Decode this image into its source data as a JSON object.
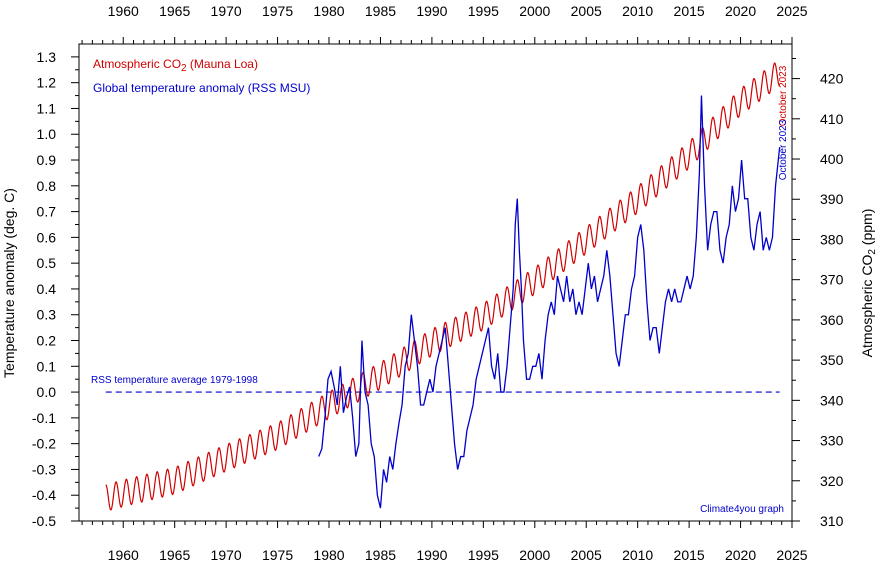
{
  "chart_data": {
    "type": "line",
    "colors": {
      "co2": "#d00000",
      "temperature": "#0000cc",
      "reference": "#0000cc",
      "axes": "#000000"
    },
    "x_axis": {
      "range": [
        1955.7,
        2025
      ],
      "ticks": [
        1960,
        1965,
        1970,
        1975,
        1980,
        1985,
        1990,
        1995,
        2000,
        2005,
        2010,
        2015,
        2020,
        2025
      ],
      "tick_labels": [
        "1960",
        "1965",
        "1970",
        "1975",
        "1980",
        "1985",
        "1990",
        "1995",
        "2000",
        "2005",
        "2010",
        "2015",
        "2020",
        "2025"
      ],
      "minor_step": 1,
      "labels_top_and_bottom": true
    },
    "y_left": {
      "label": "Temperature anomaly (deg. C)",
      "range": [
        -0.5,
        1.35
      ],
      "ticks": [
        -0.5,
        -0.4,
        -0.3,
        -0.2,
        -0.1,
        0.0,
        0.1,
        0.2,
        0.3,
        0.4,
        0.5,
        0.6,
        0.7,
        0.8,
        0.9,
        1.0,
        1.1,
        1.2,
        1.3
      ],
      "tick_labels": [
        "-0.5",
        "-0.4",
        "-0.3",
        "-0.2",
        "-0.1",
        "0.0",
        "0.1",
        "0.2",
        "0.3",
        "0.4",
        "0.5",
        "0.6",
        "0.7",
        "0.8",
        "0.9",
        "1.0",
        "1.1",
        "1.2",
        "1.3"
      ]
    },
    "y_right": {
      "label_prefix": "Atmospheric CO",
      "label_sub": "2",
      "label_suffix": " (ppm)",
      "range": [
        310,
        428.6
      ],
      "ticks": [
        310,
        320,
        330,
        340,
        350,
        360,
        370,
        380,
        390,
        400,
        410,
        420
      ],
      "tick_labels": [
        "310",
        "320",
        "330",
        "340",
        "350",
        "360",
        "370",
        "380",
        "390",
        "400",
        "410",
        "420"
      ]
    },
    "series": [
      {
        "name": "Atmospheric CO2 (Mauna Loa)",
        "legend_prefix": "Atmospheric CO",
        "legend_sub": "2",
        "legend_suffix": " (Mauna Loa)",
        "axis": "right",
        "style": "seasonal-cycle",
        "x": [
          1958.3,
          1960,
          1965,
          1970,
          1975,
          1980,
          1985,
          1990,
          1995,
          2000,
          2005,
          2010,
          2015,
          2020,
          2023.8
        ],
        "y": [
          315.7,
          316.9,
          320.0,
          325.7,
          331.1,
          338.8,
          346.1,
          354.4,
          360.8,
          369.7,
          379.8,
          389.9,
          401.0,
          414.2,
          421.5
        ],
        "seasonal_amplitude_ppm": 3.3
      },
      {
        "name": "Global temperature anomaly (RSS MSU)",
        "axis": "left",
        "x": [
          1979.0,
          1979.3,
          1979.6,
          1979.9,
          1980.2,
          1980.5,
          1980.8,
          1981.1,
          1981.4,
          1981.7,
          1982.0,
          1982.3,
          1982.6,
          1982.9,
          1983.2,
          1983.5,
          1983.8,
          1984.1,
          1984.4,
          1984.7,
          1985.0,
          1985.3,
          1985.6,
          1985.9,
          1986.2,
          1986.5,
          1986.8,
          1987.1,
          1987.4,
          1987.7,
          1988.0,
          1988.3,
          1988.6,
          1988.9,
          1989.2,
          1989.5,
          1989.8,
          1990.1,
          1990.4,
          1990.7,
          1991.0,
          1991.3,
          1991.6,
          1991.9,
          1992.2,
          1992.5,
          1992.8,
          1993.1,
          1993.4,
          1993.7,
          1994.0,
          1994.3,
          1994.6,
          1994.9,
          1995.2,
          1995.5,
          1995.8,
          1996.1,
          1996.4,
          1996.7,
          1997.0,
          1997.3,
          1997.6,
          1997.9,
          1998.1,
          1998.3,
          1998.5,
          1998.7,
          1998.9,
          1999.2,
          1999.5,
          1999.8,
          2000.1,
          2000.4,
          2000.7,
          2001.0,
          2001.3,
          2001.6,
          2001.9,
          2002.2,
          2002.5,
          2002.8,
          2003.1,
          2003.4,
          2003.7,
          2004.0,
          2004.3,
          2004.6,
          2004.9,
          2005.2,
          2005.5,
          2005.8,
          2006.1,
          2006.4,
          2006.7,
          2007.0,
          2007.3,
          2007.6,
          2007.9,
          2008.2,
          2008.5,
          2008.8,
          2009.1,
          2009.4,
          2009.7,
          2010.0,
          2010.3,
          2010.6,
          2010.9,
          2011.2,
          2011.5,
          2011.8,
          2012.1,
          2012.4,
          2012.7,
          2013.0,
          2013.3,
          2013.6,
          2013.9,
          2014.2,
          2014.5,
          2014.8,
          2015.1,
          2015.4,
          2015.7,
          2016.0,
          2016.2,
          2016.5,
          2016.8,
          2017.1,
          2017.4,
          2017.7,
          2018.0,
          2018.3,
          2018.6,
          2018.9,
          2019.2,
          2019.5,
          2019.8,
          2020.1,
          2020.4,
          2020.7,
          2021.0,
          2021.3,
          2021.6,
          2021.9,
          2022.2,
          2022.5,
          2022.8,
          2023.1,
          2023.4,
          2023.8
        ],
        "y": [
          -0.25,
          -0.22,
          -0.1,
          0.05,
          0.08,
          0.02,
          -0.05,
          0.1,
          -0.08,
          -0.02,
          0.02,
          -0.1,
          -0.25,
          -0.2,
          0.2,
          0.0,
          -0.05,
          -0.2,
          -0.25,
          -0.4,
          -0.45,
          -0.3,
          -0.35,
          -0.25,
          -0.3,
          -0.2,
          -0.12,
          -0.05,
          0.1,
          0.15,
          0.3,
          0.2,
          0.1,
          -0.05,
          -0.05,
          0.0,
          0.05,
          0.0,
          0.1,
          0.15,
          0.2,
          0.25,
          0.1,
          -0.05,
          -0.2,
          -0.3,
          -0.25,
          -0.25,
          -0.15,
          -0.1,
          -0.05,
          0.05,
          0.1,
          0.15,
          0.2,
          0.25,
          0.1,
          0.05,
          0.15,
          0.0,
          0.0,
          0.1,
          0.25,
          0.4,
          0.65,
          0.75,
          0.55,
          0.4,
          0.2,
          0.05,
          0.05,
          0.1,
          0.1,
          0.15,
          0.05,
          0.2,
          0.3,
          0.35,
          0.3,
          0.45,
          0.4,
          0.35,
          0.45,
          0.35,
          0.4,
          0.3,
          0.35,
          0.3,
          0.4,
          0.5,
          0.4,
          0.45,
          0.35,
          0.4,
          0.45,
          0.55,
          0.45,
          0.3,
          0.15,
          0.1,
          0.2,
          0.3,
          0.3,
          0.4,
          0.45,
          0.6,
          0.65,
          0.55,
          0.35,
          0.2,
          0.25,
          0.25,
          0.15,
          0.25,
          0.35,
          0.4,
          0.35,
          0.4,
          0.35,
          0.35,
          0.4,
          0.45,
          0.4,
          0.45,
          0.6,
          0.85,
          1.15,
          0.8,
          0.55,
          0.65,
          0.7,
          0.7,
          0.55,
          0.5,
          0.6,
          0.65,
          0.8,
          0.7,
          0.75,
          0.9,
          0.75,
          0.75,
          0.6,
          0.55,
          0.65,
          0.7,
          0.55,
          0.6,
          0.55,
          0.6,
          0.8,
          0.95
        ]
      },
      {
        "name": "RSS temperature average 1979-1998",
        "axis": "left",
        "style": "dashed-reference",
        "x": [
          1958.3,
          2023.8
        ],
        "y": [
          0.0,
          0.0
        ]
      }
    ],
    "annotations": {
      "co2_end": "October 2023",
      "temp_end": "October 2023",
      "credit": "Climate4you graph"
    }
  }
}
